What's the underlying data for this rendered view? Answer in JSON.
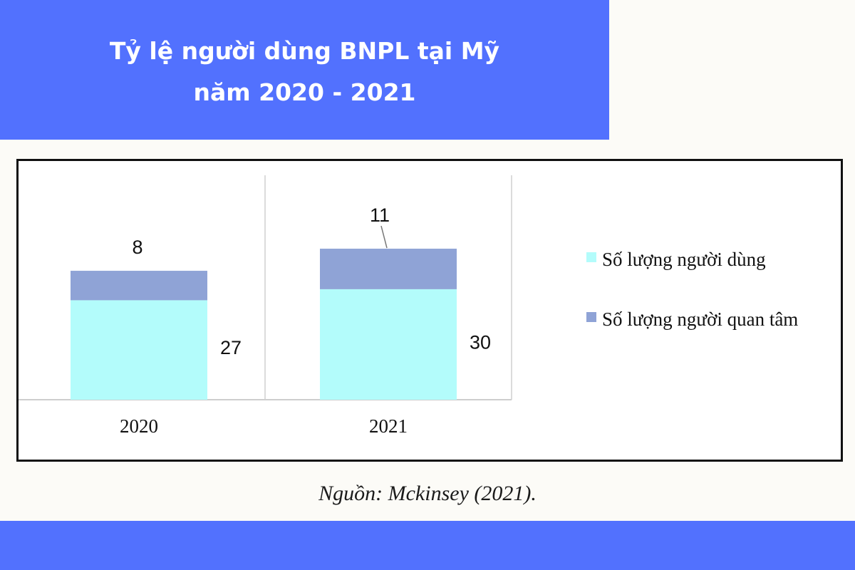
{
  "header": {
    "title_line1": "Tỷ lệ người dùng BNPL tại Mỹ",
    "title_line2": "năm 2020 - 2021"
  },
  "source": "Nguồn: Mckinsey (2021).",
  "colors": {
    "band": "#5271fe",
    "users": "#b3fcfb",
    "interested": "#8fa3d6"
  },
  "chart_data": {
    "type": "bar",
    "stacked": true,
    "categories": [
      "2020",
      "2021"
    ],
    "series": [
      {
        "name": "Số lượng người dùng",
        "values": [
          27,
          30
        ],
        "color": "#b3fcfb"
      },
      {
        "name": "Số lượng người quan tâm",
        "values": [
          8,
          11
        ],
        "color": "#8fa3d6"
      }
    ],
    "ylim": [
      0,
      50
    ],
    "legend": "right",
    "grid": false
  }
}
